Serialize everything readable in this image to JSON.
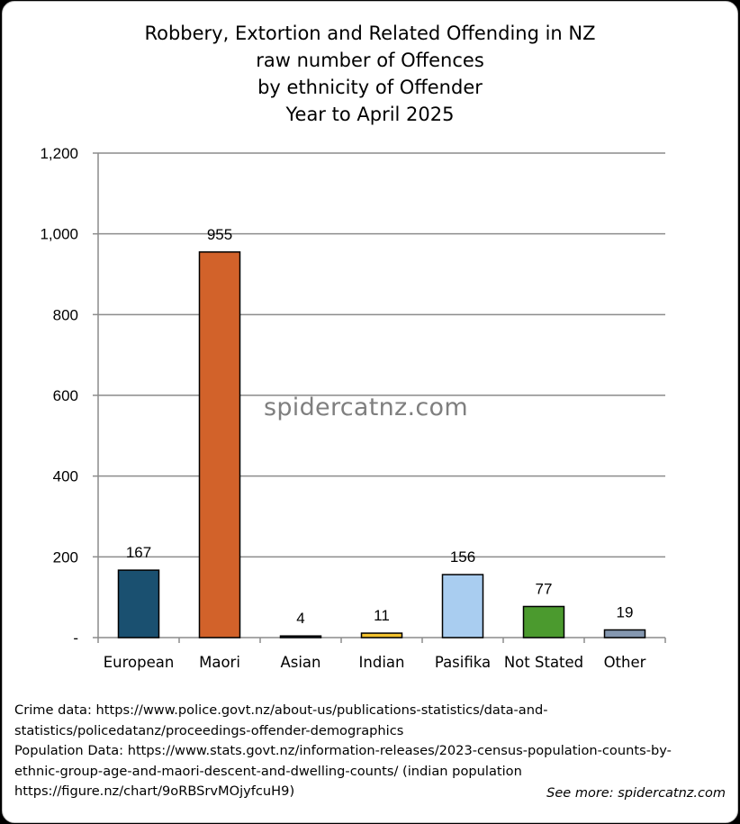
{
  "chart_data": {
    "type": "bar",
    "title_lines": [
      "Robbery, Extortion and Related Offending in NZ",
      "raw number of Offences",
      "by ethnicity of Offender",
      "Year to April 2025"
    ],
    "categories": [
      "European",
      "Maori",
      "Asian",
      "Indian",
      "Pasifika",
      "Not Stated",
      "Other"
    ],
    "values": [
      167,
      955,
      4,
      11,
      156,
      77,
      19
    ],
    "data_labels": [
      "167",
      "955",
      "4",
      "11",
      "156",
      "77",
      "19"
    ],
    "colors": [
      "#1a5070",
      "#d2622a",
      "#1f3e5a",
      "#f2c12e",
      "#a9cdf0",
      "#4b9a2e",
      "#8497b0"
    ],
    "ylim": [
      0,
      1200
    ],
    "yticks": [
      {
        "value": 0,
        "label": "-"
      },
      {
        "value": 200,
        "label": "200"
      },
      {
        "value": 400,
        "label": "400"
      },
      {
        "value": 600,
        "label": "600"
      },
      {
        "value": 800,
        "label": "800"
      },
      {
        "value": 1000,
        "label": "1,000"
      },
      {
        "value": 1200,
        "label": "1,200"
      }
    ],
    "grid": true,
    "xlabel": "",
    "ylabel": "",
    "watermark": "spidercatnz.com"
  },
  "sources": {
    "lines": [
      "Crime data: https://www.police.govt.nz/about-us/publications-statistics/data-and-",
      "statistics/policedatanz/proceedings-offender-demographics",
      "Population Data: https://www.stats.govt.nz/information-releases/2023-census-population-counts-by-",
      "ethnic-group-age-and-maori-descent-and-dwelling-counts/ (indian population",
      "https://figure.nz/chart/9oRBSrvMOjyfcuH9)"
    ],
    "see_more": "See more: spidercatnz.com"
  }
}
